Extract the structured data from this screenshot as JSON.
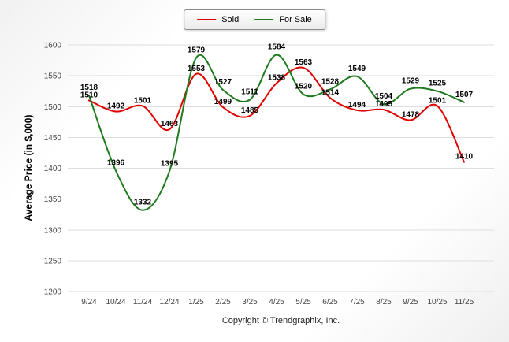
{
  "page": {
    "footer": "Copyright © Trendgraphix, Inc."
  },
  "legend": {
    "position": "top-center"
  },
  "chart_data": {
    "type": "line",
    "title": "",
    "xlabel": "",
    "ylabel": "Average Price (in $,000)",
    "ylim": [
      1200,
      1600
    ],
    "ytick_step": 50,
    "grid": true,
    "legend_position": "top-center",
    "line_style": "smooth",
    "categories": [
      "9/24",
      "10/24",
      "11/24",
      "12/24",
      "1/25",
      "2/25",
      "3/25",
      "4/25",
      "5/25",
      "6/25",
      "7/25",
      "8/25",
      "9/25",
      "10/25",
      "11/25"
    ],
    "series": [
      {
        "name": "Sold",
        "color": "#e00000",
        "values": [
          1510,
          1492,
          1501,
          1463,
          1553,
          1499,
          1485,
          1538,
          1563,
          1514,
          1494,
          1495,
          1478,
          1501,
          1410
        ]
      },
      {
        "name": "For Sale",
        "color": "#1d7a1d",
        "values": [
          1518,
          1396,
          1332,
          1395,
          1579,
          1527,
          1511,
          1584,
          1520,
          1528,
          1549,
          1504,
          1529,
          1525,
          1507
        ]
      }
    ]
  }
}
